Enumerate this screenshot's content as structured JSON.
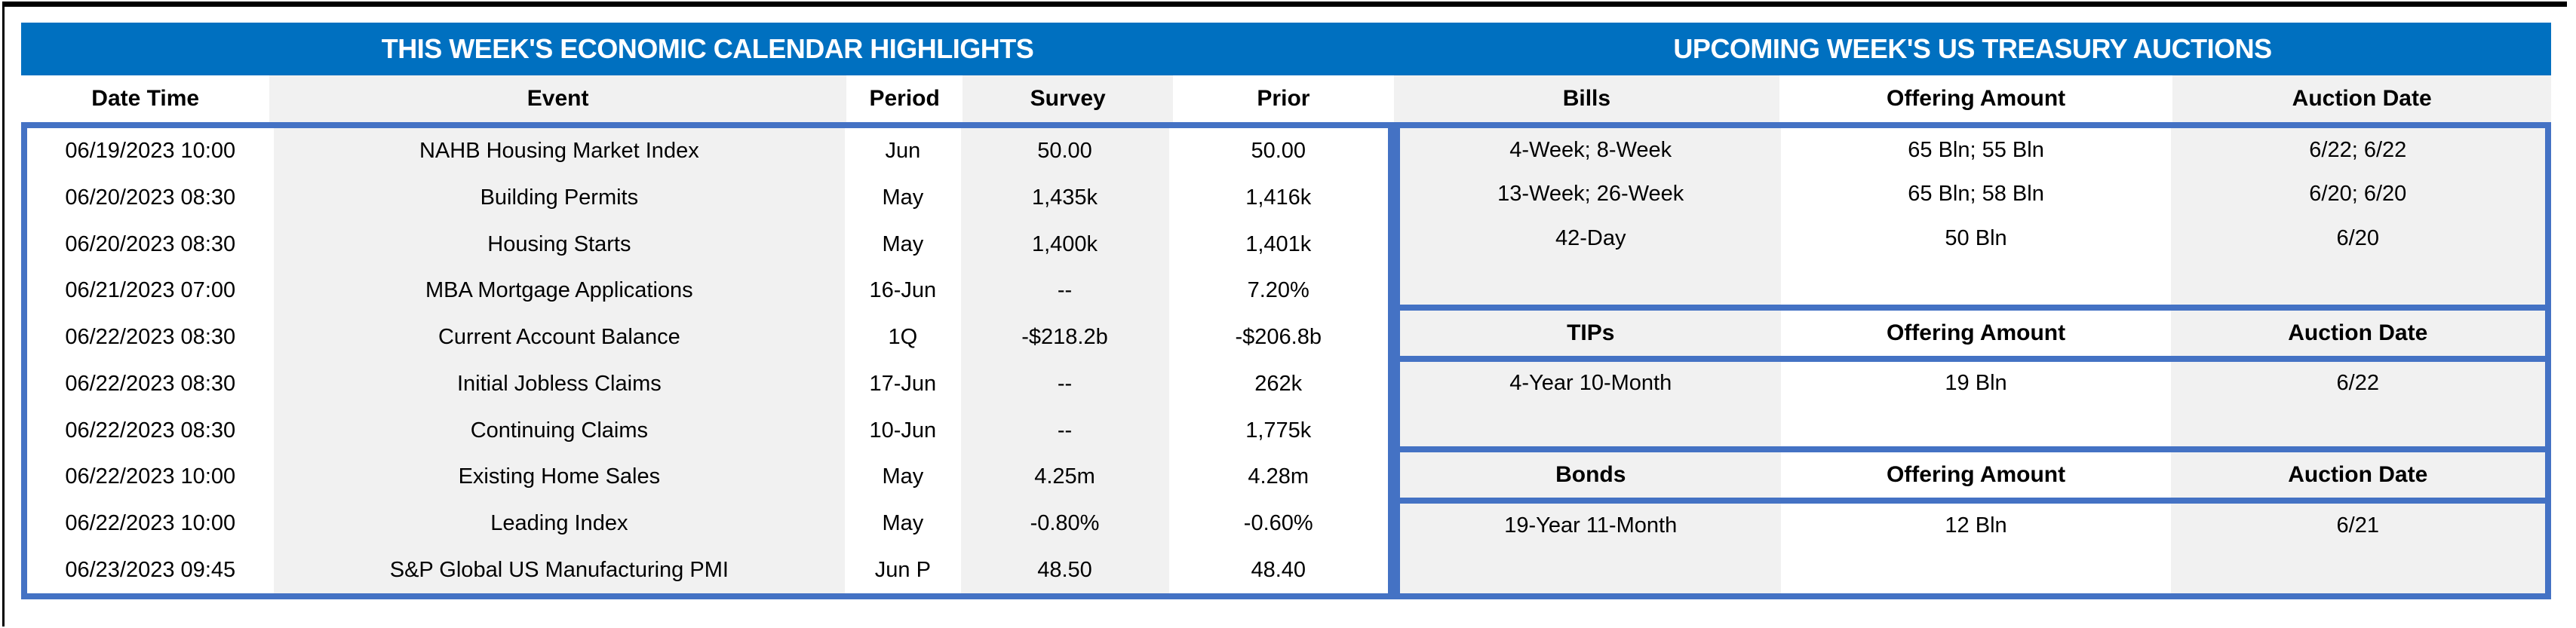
{
  "colors": {
    "banner_blue": "#0070C0",
    "border_blue": "#4472C4",
    "cell_gray": "#F1F1F1",
    "banner_text": "#FFFFFF",
    "text": "#000000",
    "frame_black": "#000000"
  },
  "left_table": {
    "title": "THIS WEEK'S ECONOMIC CALENDAR HIGHLIGHTS",
    "columns": [
      "Date Time",
      "Event",
      "Period",
      "Survey",
      "Prior"
    ],
    "rows": [
      [
        "06/19/2023 10:00",
        "NAHB Housing Market Index",
        "Jun",
        "50.00",
        "50.00"
      ],
      [
        "06/20/2023 08:30",
        "Building Permits",
        "May",
        "1,435k",
        "1,416k"
      ],
      [
        "06/20/2023 08:30",
        "Housing Starts",
        "May",
        "1,400k",
        "1,401k"
      ],
      [
        "06/21/2023 07:00",
        "MBA Mortgage Applications",
        "16-Jun",
        "--",
        "7.20%"
      ],
      [
        "06/22/2023 08:30",
        "Current Account Balance",
        "1Q",
        "-$218.2b",
        "-$206.8b"
      ],
      [
        "06/22/2023 08:30",
        "Initial Jobless Claims",
        "17-Jun",
        "--",
        "262k"
      ],
      [
        "06/22/2023 08:30",
        "Continuing Claims",
        "10-Jun",
        "--",
        "1,775k"
      ],
      [
        "06/22/2023 10:00",
        "Existing Home Sales",
        "May",
        "4.25m",
        "4.28m"
      ],
      [
        "06/22/2023 10:00",
        "Leading Index",
        "May",
        "-0.80%",
        "-0.60%"
      ],
      [
        "06/23/2023 09:45",
        "S&P Global US Manufacturing PMI",
        "Jun P",
        "48.50",
        "48.40"
      ]
    ]
  },
  "right_table": {
    "title": "UPCOMING WEEK'S US TREASURY AUCTIONS",
    "sections": [
      {
        "header": [
          "Bills",
          "Offering Amount",
          "Auction Date"
        ],
        "rows": [
          [
            "4-Week; 8-Week",
            "65 Bln; 55 Bln",
            "6/22; 6/22"
          ],
          [
            "13-Week; 26-Week",
            "65 Bln; 58 Bln",
            "6/20; 6/20"
          ],
          [
            "42-Day",
            "50 Bln",
            "6/20"
          ],
          [
            "",
            "",
            ""
          ]
        ]
      },
      {
        "header": [
          "TIPs",
          "Offering Amount",
          "Auction Date"
        ],
        "rows": [
          [
            "4-Year 10-Month",
            "19 Bln",
            "6/22"
          ],
          [
            "",
            "",
            ""
          ]
        ]
      },
      {
        "header": [
          "Bonds",
          "Offering Amount",
          "Auction Date"
        ],
        "rows": [
          [
            "19-Year 11-Month",
            "12 Bln",
            "6/21"
          ],
          [
            "",
            "",
            ""
          ]
        ]
      }
    ]
  }
}
